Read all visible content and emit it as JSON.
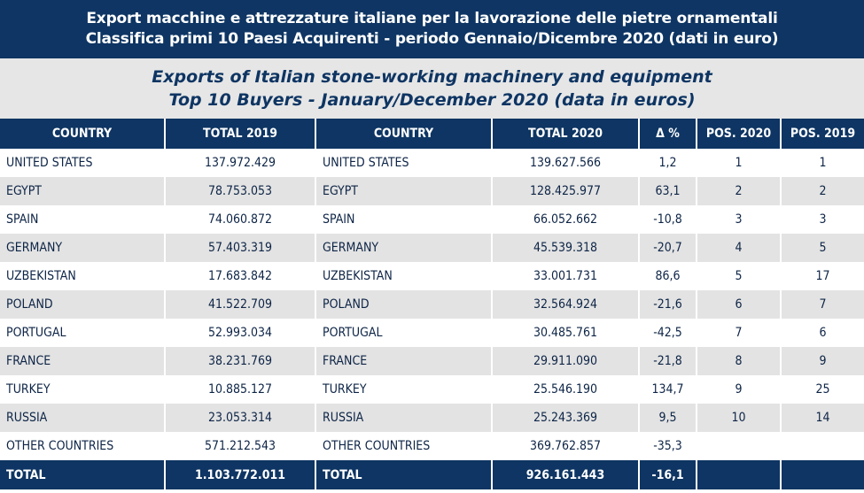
{
  "header": {
    "title_it_line1": "Export macchine e attrezzature italiane per la lavorazione delle pietre ornamentali",
    "title_it_line2": "Classifica primi 10 Paesi Acquirenti - periodo Gennaio/Dicembre 2020 (dati in euro)",
    "title_en_line1": "Exports of Italian stone-working machinery and equipment",
    "title_en_line2": "Top 10 Buyers - January/December 2020 (data in euros)"
  },
  "table": {
    "columns": [
      "COUNTRY",
      "TOTAL 2019",
      "COUNTRY",
      "TOTAL 2020",
      "Δ %",
      "POS. 2020",
      "POS. 2019"
    ],
    "rows": [
      [
        "UNITED STATES",
        "137.972.429",
        "UNITED STATES",
        "139.627.566",
        "1,2",
        "1",
        "1"
      ],
      [
        "EGYPT",
        "78.753.053",
        "EGYPT",
        "128.425.977",
        "63,1",
        "2",
        "2"
      ],
      [
        "SPAIN",
        "74.060.872",
        "SPAIN",
        "66.052.662",
        "-10,8",
        "3",
        "3"
      ],
      [
        "GERMANY",
        "57.403.319",
        "GERMANY",
        "45.539.318",
        "-20,7",
        "4",
        "5"
      ],
      [
        "UZBEKISTAN",
        "17.683.842",
        "UZBEKISTAN",
        "33.001.731",
        "86,6",
        "5",
        "17"
      ],
      [
        "POLAND",
        "41.522.709",
        "POLAND",
        "32.564.924",
        "-21,6",
        "6",
        "7"
      ],
      [
        "PORTUGAL",
        "52.993.034",
        "PORTUGAL",
        "30.485.761",
        "-42,5",
        "7",
        "6"
      ],
      [
        "FRANCE",
        "38.231.769",
        "FRANCE",
        "29.911.090",
        "-21,8",
        "8",
        "9"
      ],
      [
        "TURKEY",
        "10.885.127",
        "TURKEY",
        "25.546.190",
        "134,7",
        "9",
        "25"
      ],
      [
        "RUSSIA",
        "23.053.314",
        "RUSSIA",
        "25.243.369",
        "9,5",
        "10",
        "14"
      ],
      [
        "OTHER COUNTRIES",
        "571.212.543",
        "OTHER COUNTRIES",
        "369.762.857",
        "-35,3",
        "",
        ""
      ]
    ],
    "total": [
      "TOTAL",
      "1.103.772.011",
      "TOTAL",
      "926.161.443",
      "-16,1",
      "",
      ""
    ]
  }
}
